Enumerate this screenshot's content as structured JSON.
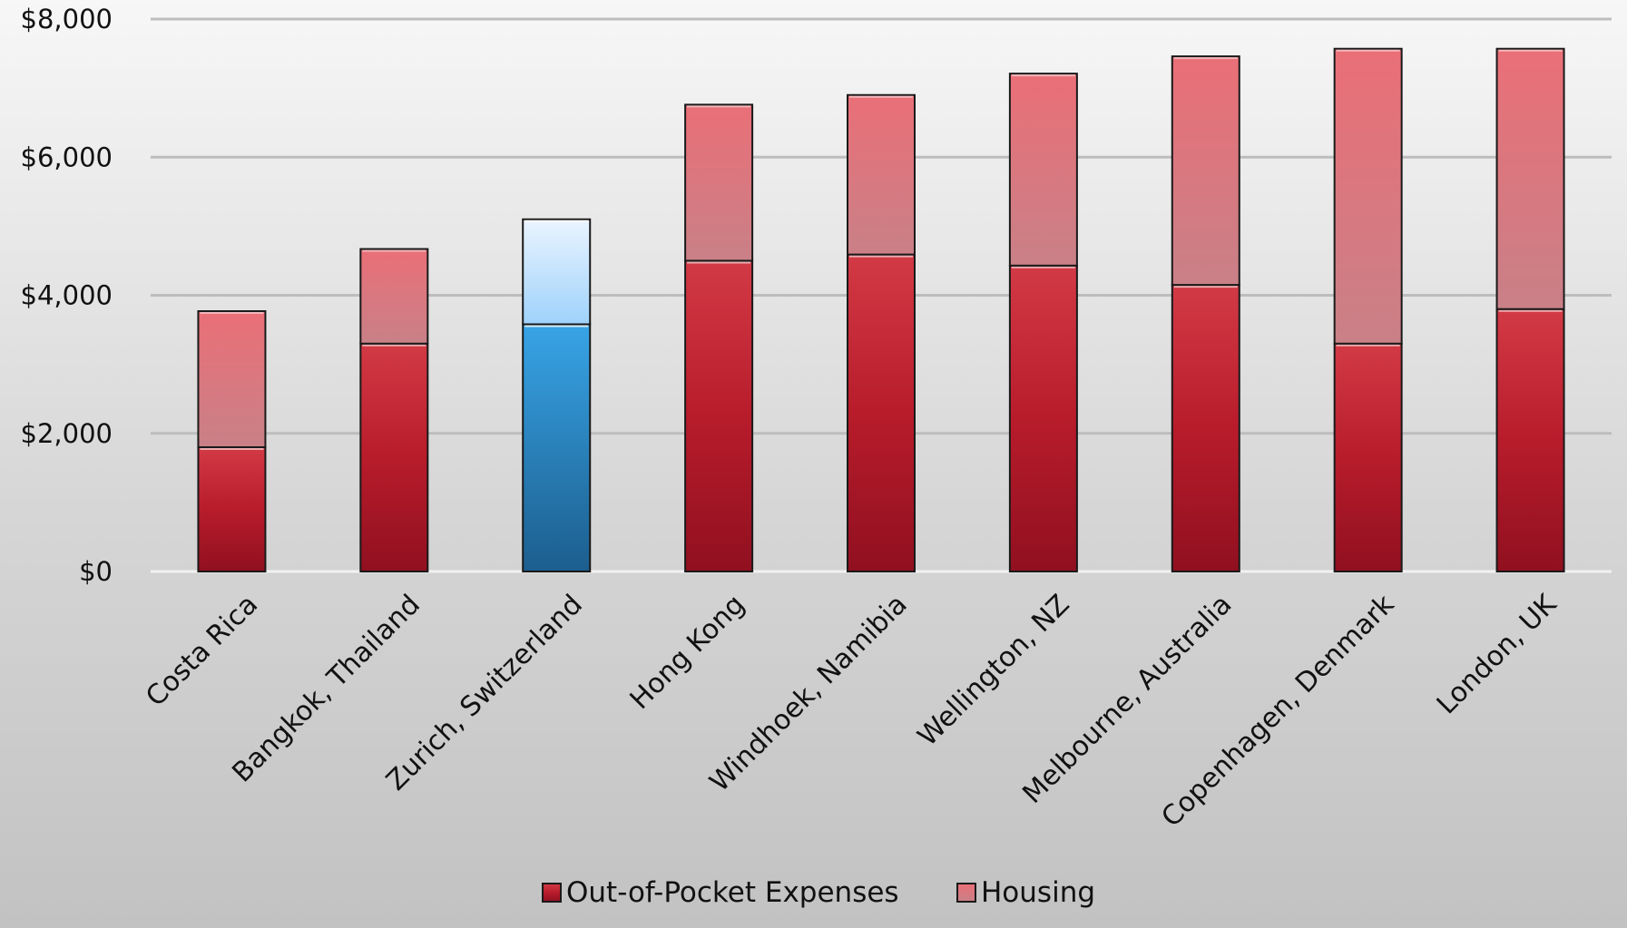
{
  "chart_data": {
    "type": "bar",
    "stacked": true,
    "title": "",
    "xlabel": "",
    "ylabel": "",
    "ylim": [
      0,
      8000
    ],
    "yticks": [
      0,
      2000,
      4000,
      6000,
      8000
    ],
    "ytick_labels": [
      "$0",
      "$2,000",
      "$4,000",
      "$6,000",
      "$8,000"
    ],
    "grid": true,
    "legend_position": "bottom",
    "categories": [
      "Costa Rica",
      "Bangkok, Thailand",
      "Zurich, Switzerland",
      "Hong Kong",
      "Windhoek, Namibia",
      "Wellington, NZ",
      "Melbourne, Australia",
      "Copenhagen, Denmark",
      "London, UK"
    ],
    "series": [
      {
        "name": "Out-of-Pocket Expenses",
        "color": "#c0202e",
        "values": [
          1800,
          3300,
          3580,
          4500,
          4590,
          4430,
          4150,
          3300,
          3800
        ]
      },
      {
        "name": "Housing",
        "color": "#e17a80",
        "values": [
          1970,
          1370,
          1520,
          2260,
          2310,
          2780,
          3310,
          4270,
          3770
        ]
      }
    ],
    "highlight": {
      "category_index": 2,
      "colors": [
        "#2d8fd0",
        "#bfe0ff"
      ]
    }
  }
}
